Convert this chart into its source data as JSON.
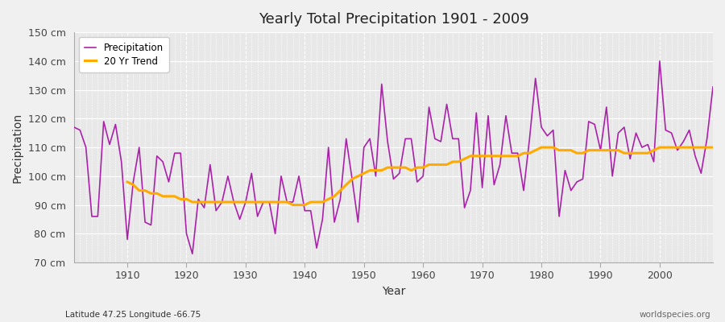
{
  "title": "Yearly Total Precipitation 1901 - 2009",
  "xlabel": "Year",
  "ylabel": "Precipitation",
  "subtitle_left": "Latitude 47.25 Longitude -66.75",
  "subtitle_right": "worldspecies.org",
  "ylim": [
    70,
    150
  ],
  "yticks": [
    70,
    80,
    90,
    100,
    110,
    120,
    130,
    140,
    150
  ],
  "ytick_labels": [
    "70 cm",
    "80 cm",
    "90 cm",
    "100 cm",
    "110 cm",
    "120 cm",
    "130 cm",
    "140 cm",
    "150 cm"
  ],
  "xlim": [
    1901,
    2009
  ],
  "xticks": [
    1910,
    1920,
    1930,
    1940,
    1950,
    1960,
    1970,
    1980,
    1990,
    2000
  ],
  "precip_color": "#aa22aa",
  "trend_color": "#ffaa00",
  "bg_color": "#f0f0f0",
  "plot_bg": "#e8e8e8",
  "grid_color": "#ffffff",
  "years": [
    1901,
    1902,
    1903,
    1904,
    1905,
    1906,
    1907,
    1908,
    1909,
    1910,
    1911,
    1912,
    1913,
    1914,
    1915,
    1916,
    1917,
    1918,
    1919,
    1920,
    1921,
    1922,
    1923,
    1924,
    1925,
    1926,
    1927,
    1928,
    1929,
    1930,
    1931,
    1932,
    1933,
    1934,
    1935,
    1936,
    1937,
    1938,
    1939,
    1940,
    1941,
    1942,
    1943,
    1944,
    1945,
    1946,
    1947,
    1948,
    1949,
    1950,
    1951,
    1952,
    1953,
    1954,
    1955,
    1956,
    1957,
    1958,
    1959,
    1960,
    1961,
    1962,
    1963,
    1964,
    1965,
    1966,
    1967,
    1968,
    1969,
    1970,
    1971,
    1972,
    1973,
    1974,
    1975,
    1976,
    1977,
    1978,
    1979,
    1980,
    1981,
    1982,
    1983,
    1984,
    1985,
    1986,
    1987,
    1988,
    1989,
    1990,
    1991,
    1992,
    1993,
    1994,
    1995,
    1996,
    1997,
    1998,
    1999,
    2000,
    2001,
    2002,
    2003,
    2004,
    2005,
    2006,
    2007,
    2008,
    2009
  ],
  "precip": [
    117,
    116,
    110,
    86,
    86,
    119,
    111,
    118,
    105,
    78,
    98,
    110,
    84,
    83,
    107,
    105,
    98,
    108,
    108,
    80,
    73,
    92,
    89,
    104,
    88,
    91,
    100,
    91,
    85,
    91,
    101,
    86,
    91,
    91,
    80,
    100,
    91,
    91,
    100,
    88,
    88,
    75,
    85,
    110,
    84,
    92,
    113,
    99,
    84,
    110,
    113,
    100,
    132,
    112,
    99,
    101,
    113,
    113,
    98,
    100,
    124,
    113,
    112,
    125,
    113,
    113,
    89,
    95,
    122,
    96,
    121,
    97,
    104,
    121,
    108,
    108,
    95,
    113,
    134,
    117,
    114,
    116,
    86,
    102,
    95,
    98,
    99,
    119,
    118,
    109,
    124,
    100,
    115,
    117,
    106,
    115,
    110,
    111,
    105,
    140,
    116,
    115,
    109,
    112,
    116,
    107,
    101,
    113,
    131
  ],
  "trend": [
    null,
    null,
    null,
    null,
    null,
    null,
    null,
    null,
    null,
    98,
    97,
    95,
    95,
    94,
    94,
    93,
    93,
    93,
    92,
    92,
    91,
    91,
    91,
    91,
    91,
    91,
    91,
    91,
    91,
    91,
    91,
    91,
    91,
    91,
    91,
    91,
    91,
    90,
    90,
    90,
    91,
    91,
    91,
    92,
    93,
    95,
    97,
    99,
    100,
    101,
    102,
    102,
    102,
    103,
    103,
    103,
    103,
    102,
    103,
    103,
    104,
    104,
    104,
    104,
    105,
    105,
    106,
    107,
    107,
    107,
    107,
    107,
    107,
    107,
    107,
    107,
    108,
    108,
    109,
    110,
    110,
    110,
    109,
    109,
    109,
    108,
    108,
    109,
    109,
    109,
    109,
    109,
    109,
    108,
    108,
    108,
    108,
    108,
    109,
    110,
    110,
    110,
    110,
    110,
    110,
    110,
    110,
    110,
    110
  ]
}
